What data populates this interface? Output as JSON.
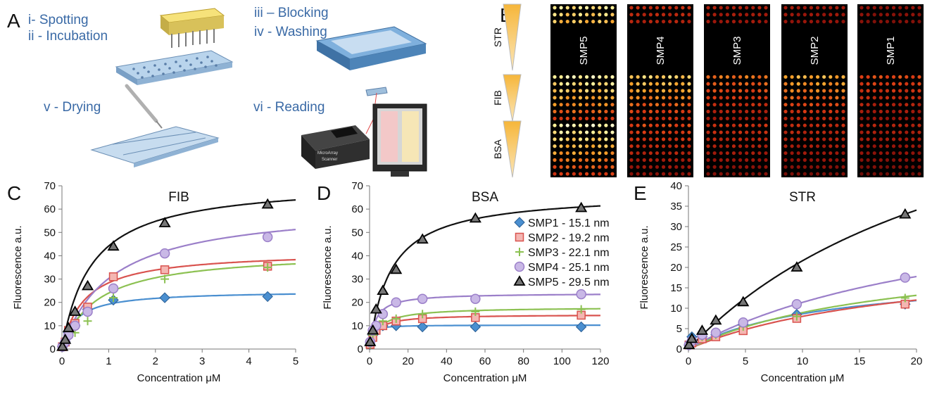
{
  "panel_a": {
    "letter": "A",
    "steps": [
      "i- Spotting",
      "ii - Incubation",
      "iii – Blocking",
      "iv -  Washing",
      "v - Drying",
      "vi - Reading"
    ],
    "scanner_label_1": "MicroArray",
    "scanner_label_2": "Scanner"
  },
  "panel_b": {
    "letter": "B",
    "row_labels": [
      "STR",
      "FIB",
      "BSA"
    ],
    "arrays": [
      {
        "label": "SMP5",
        "intensity": {
          "STR": 0.85,
          "FIB": 1.0,
          "BSA": 0.95
        }
      },
      {
        "label": "SMP4",
        "intensity": {
          "STR": 0.35,
          "FIB": 0.85,
          "BSA": 0.45
        }
      },
      {
        "label": "SMP3",
        "intensity": {
          "STR": 0.28,
          "FIB": 0.6,
          "BSA": 0.38
        }
      },
      {
        "label": "SMP2",
        "intensity": {
          "STR": 0.25,
          "FIB": 0.75,
          "BSA": 0.35
        }
      },
      {
        "label": "SMP1",
        "intensity": {
          "STR": 0.2,
          "FIB": 0.5,
          "BSA": 0.3
        }
      }
    ]
  },
  "colors": {
    "SMP1": "#4a8fd0",
    "SMP2": "#d9534f",
    "SMP3": "#8cc152",
    "SMP4": "#9b7fc9",
    "SMP5": "#111111"
  },
  "legend": [
    "SMP1 - 15.1 nm",
    "SMP2 - 19.2 nm",
    "SMP3 - 22.1 nm",
    "SMP4 - 25.1 nm",
    "SMP5 - 29.5 nm"
  ],
  "chart_data": [
    {
      "letter": "C",
      "type": "scatter",
      "title": "FIB",
      "xlabel": "Concentration μM",
      "ylabel": "Fluorescence a.u.",
      "xlim": [
        0,
        5
      ],
      "ylim": [
        0,
        70
      ],
      "xticks": [
        0,
        1,
        2,
        3,
        4,
        5
      ],
      "yticks": [
        0,
        10,
        20,
        30,
        40,
        50,
        60,
        70
      ],
      "x": [
        0.01,
        0.07,
        0.14,
        0.28,
        0.55,
        1.1,
        2.2,
        4.4
      ],
      "series": [
        {
          "name": "SMP1 - 15.1 nm",
          "marker": "diamond",
          "values": [
            1,
            3,
            7,
            10,
            17,
            21,
            22,
            22.5
          ],
          "fit": {
            "bmax": 25,
            "kd": 0.3
          }
        },
        {
          "name": "SMP2 - 19.2 nm",
          "marker": "square",
          "values": [
            1,
            3,
            8,
            11,
            18,
            31,
            34,
            35.5
          ],
          "fit": {
            "bmax": 42,
            "kd": 0.48
          }
        },
        {
          "name": "SMP3 - 22.1 nm",
          "marker": "plus",
          "values": [
            1,
            3,
            5,
            7,
            12,
            22,
            30,
            35
          ],
          "fit": {
            "bmax": 42,
            "kd": 0.75
          }
        },
        {
          "name": "SMP4 - 25.1 nm",
          "marker": "circle",
          "values": [
            1,
            3,
            6,
            10,
            16,
            26,
            41,
            48
          ],
          "fit": {
            "bmax": 62,
            "kd": 1.05
          }
        },
        {
          "name": "SMP5 - 29.5 nm",
          "marker": "triangle",
          "values": [
            1,
            4,
            9,
            16,
            27,
            44,
            54,
            62
          ],
          "fit": {
            "bmax": 72,
            "kd": 0.63
          }
        }
      ]
    },
    {
      "letter": "D",
      "type": "scatter",
      "title": "BSA",
      "xlabel": "Concentration μM",
      "ylabel": "Fluorescence a.u.",
      "xlim": [
        0,
        120
      ],
      "ylim": [
        0,
        70
      ],
      "xticks": [
        0,
        20,
        40,
        60,
        80,
        100,
        120
      ],
      "yticks": [
        0,
        10,
        20,
        30,
        40,
        50,
        60,
        70
      ],
      "x": [
        0.3,
        1.7,
        3.4,
        6.9,
        13.8,
        27.5,
        55,
        110
      ],
      "series": [
        {
          "name": "SMP1 - 15.1 nm",
          "marker": "diamond",
          "values": [
            2,
            6,
            9,
            10,
            10,
            9.5,
            9.5,
            9.5
          ],
          "fit": {
            "bmax": 10.3,
            "kd": 0.9
          }
        },
        {
          "name": "SMP2 - 19.2 nm",
          "marker": "square",
          "values": [
            2,
            5,
            8,
            10,
            12,
            13,
            13.5,
            14.5
          ],
          "fit": {
            "bmax": 14.8,
            "kd": 3.5
          }
        },
        {
          "name": "SMP3 - 22.1 nm",
          "marker": "plus",
          "values": [
            2,
            6,
            9,
            12,
            13,
            15,
            16,
            17
          ],
          "fit": {
            "bmax": 18,
            "kd": 5
          }
        },
        {
          "name": "SMP4 - 25.1 nm",
          "marker": "circle",
          "values": [
            3,
            8,
            10,
            15,
            20,
            21.5,
            21.5,
            23.5
          ],
          "fit": {
            "bmax": 24,
            "kd": 3
          }
        },
        {
          "name": "SMP5 - 29.5 nm",
          "marker": "triangle",
          "values": [
            3,
            8,
            17,
            25,
            34,
            47,
            56,
            60.5
          ],
          "fit": {
            "bmax": 67,
            "kd": 11
          }
        }
      ]
    },
    {
      "letter": "E",
      "type": "scatter",
      "title": "STR",
      "xlabel": "Concentration μM",
      "ylabel": "Fluorescence a.u.",
      "xlim": [
        0,
        20
      ],
      "ylim": [
        0,
        40
      ],
      "xticks": [
        0,
        5,
        10,
        15,
        20
      ],
      "yticks": [
        0,
        5,
        10,
        15,
        20,
        25,
        30,
        35,
        40
      ],
      "x": [
        0.05,
        0.3,
        1.2,
        2.4,
        4.8,
        9.5,
        19
      ],
      "series": [
        {
          "name": "SMP1 - 15.1 nm",
          "marker": "diamond",
          "values": [
            1,
            3,
            3,
            3.5,
            6,
            8.5,
            11
          ],
          "fit": {
            "bmax": 19,
            "kd": 12
          }
        },
        {
          "name": "SMP2 - 19.2 nm",
          "marker": "square",
          "values": [
            1,
            1.5,
            2.5,
            3,
            4.5,
            7.5,
            11
          ],
          "fit": {
            "bmax": 24,
            "kd": 20
          }
        },
        {
          "name": "SMP3 - 22.1 nm",
          "marker": "plus",
          "values": [
            1,
            2,
            3,
            3.5,
            5.5,
            8,
            12.5
          ],
          "fit": {
            "bmax": 25,
            "kd": 18
          }
        },
        {
          "name": "SMP4 - 25.1 nm",
          "marker": "circle",
          "values": [
            1,
            2,
            3.5,
            4,
            6.5,
            11,
            17.5
          ],
          "fit": {
            "bmax": 40,
            "kd": 25
          }
        },
        {
          "name": "SMP5 - 29.5 nm",
          "marker": "triangle",
          "values": [
            1,
            2.5,
            4.5,
            7,
            11.5,
            20,
            33
          ],
          "fit": {
            "bmax": 80,
            "kd": 27
          }
        }
      ]
    }
  ]
}
